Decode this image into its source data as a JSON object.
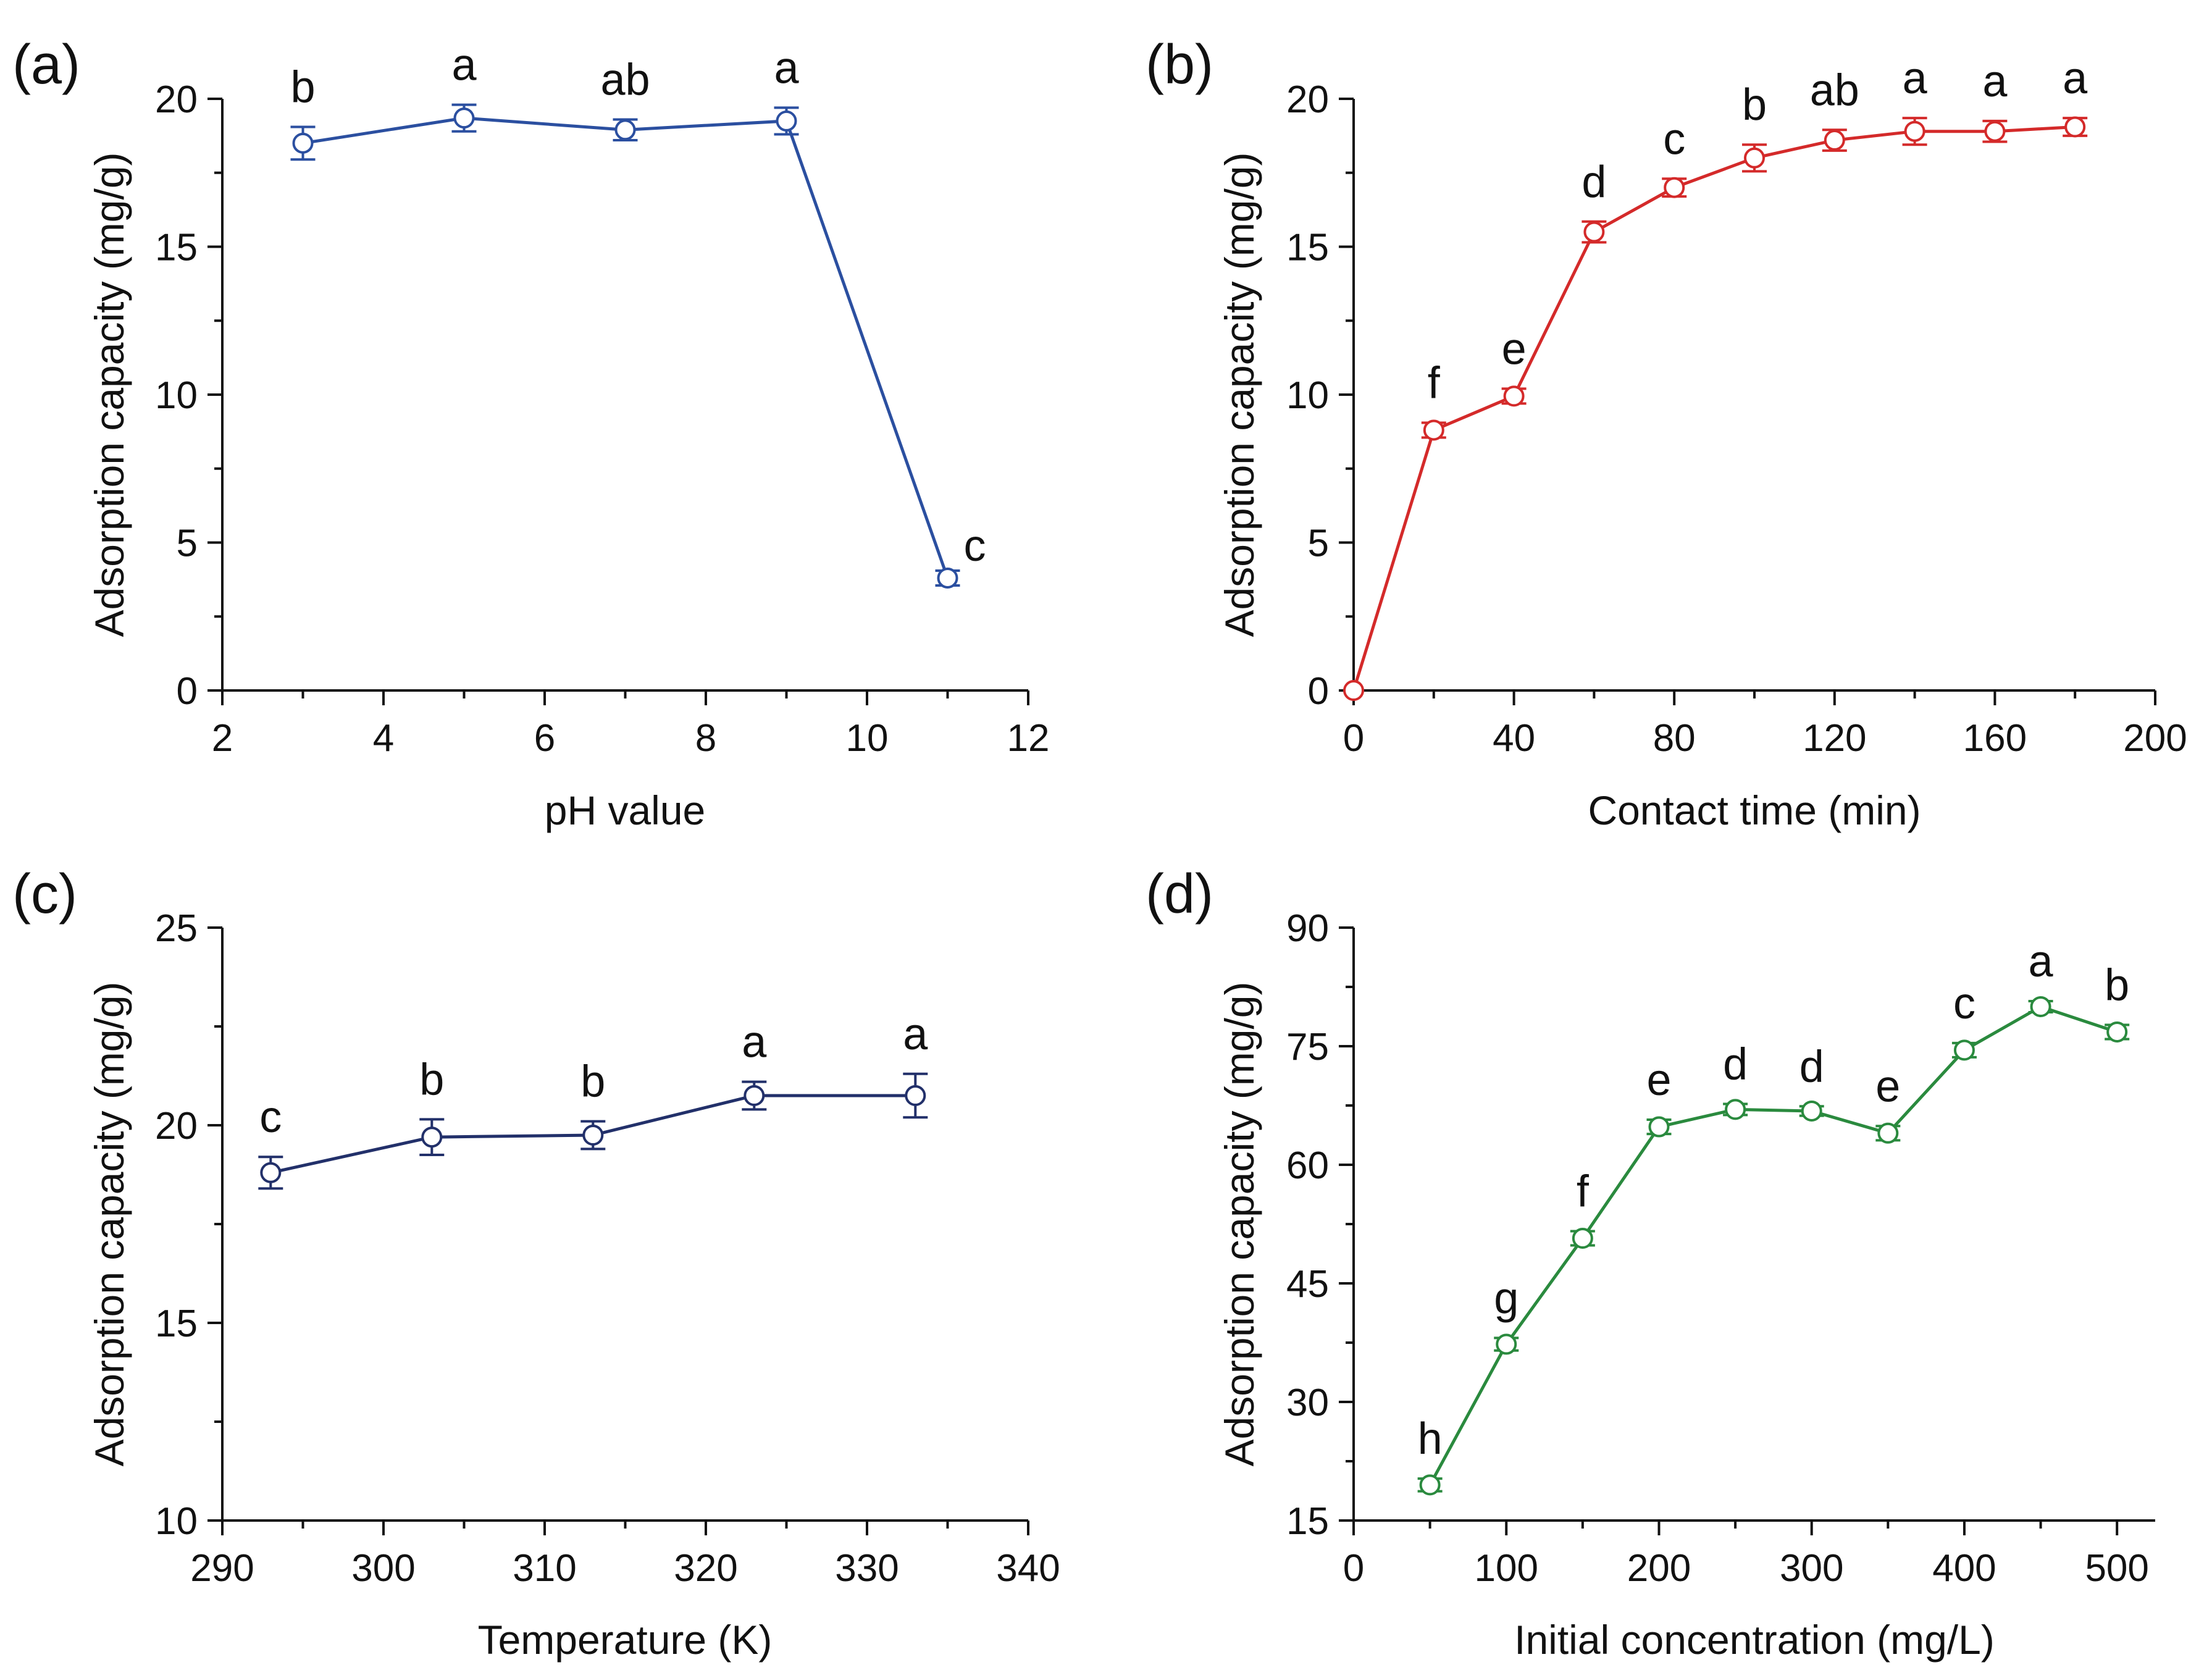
{
  "chart_data": [
    {
      "panel": "(a)",
      "type": "line",
      "xlabel": "pH value",
      "ylabel": "Adsorption capacity (mg/g)",
      "xlim": [
        2,
        12
      ],
      "ylim": [
        0,
        20
      ],
      "xticks": [
        2,
        4,
        6,
        8,
        10,
        12
      ],
      "yticks": [
        0,
        5,
        10,
        15,
        20
      ],
      "color": "#2b4fa0",
      "x": [
        3,
        5,
        7,
        9,
        11
      ],
      "y": [
        18.5,
        19.35,
        18.95,
        19.25,
        3.8
      ],
      "error": [
        0.55,
        0.45,
        0.35,
        0.45,
        0.25
      ],
      "significance": [
        "b",
        "a",
        "ab",
        "a",
        "c"
      ]
    },
    {
      "panel": "(b)",
      "type": "line",
      "xlabel": "Contact time (min)",
      "ylabel": "Adsorption capacity (mg/g)",
      "xlim": [
        0,
        200
      ],
      "ylim": [
        0,
        20
      ],
      "xticks": [
        0,
        40,
        80,
        120,
        160,
        200
      ],
      "yticks": [
        0,
        5,
        10,
        15,
        20
      ],
      "color": "#d42a2a",
      "x": [
        0,
        20,
        40,
        60,
        80,
        100,
        120,
        140,
        160,
        180
      ],
      "y": [
        0,
        8.8,
        9.95,
        15.5,
        17.0,
        18.0,
        18.6,
        18.9,
        18.9,
        19.05
      ],
      "error": [
        0,
        0.25,
        0.25,
        0.35,
        0.3,
        0.45,
        0.35,
        0.45,
        0.35,
        0.3
      ],
      "significance": [
        "",
        "f",
        "e",
        "d",
        "c",
        "b",
        "ab",
        "a",
        "a",
        "a"
      ]
    },
    {
      "panel": "(c)",
      "type": "line",
      "xlabel": "Temperature (K)",
      "ylabel": "Adsorption capacity (mg/g)",
      "xlim": [
        290,
        340
      ],
      "ylim": [
        10,
        25
      ],
      "xticks": [
        290,
        300,
        310,
        320,
        330,
        340
      ],
      "yticks": [
        10,
        15,
        20,
        25
      ],
      "color": "#22306a",
      "x": [
        293,
        303,
        313,
        323,
        333
      ],
      "y": [
        18.8,
        19.7,
        19.75,
        20.75,
        20.75
      ],
      "error": [
        0.4,
        0.45,
        0.35,
        0.35,
        0.55
      ],
      "significance": [
        "c",
        "b",
        "b",
        "a",
        "a"
      ]
    },
    {
      "panel": "(d)",
      "type": "line",
      "xlabel": "Initial concentration (mg/L)",
      "ylabel": "Adsorption capacity (mg/g)",
      "xlim": [
        0,
        525
      ],
      "ylim": [
        15,
        90
      ],
      "xticks": [
        0,
        100,
        200,
        300,
        400,
        500
      ],
      "yticks": [
        15,
        30,
        45,
        60,
        75,
        90
      ],
      "color": "#2a8a3e",
      "x": [
        50,
        100,
        150,
        200,
        250,
        300,
        350,
        400,
        450,
        500
      ],
      "y": [
        19.5,
        37.3,
        50.7,
        64.8,
        67.0,
        66.8,
        64.0,
        74.5,
        80.0,
        76.8
      ],
      "error": [
        0.8,
        0.8,
        0.9,
        0.9,
        0.7,
        0.6,
        0.9,
        0.9,
        0.7,
        0.9
      ],
      "significance": [
        "h",
        "g",
        "f",
        "e",
        "d",
        "d",
        "e",
        "c",
        "a",
        "b"
      ]
    }
  ]
}
